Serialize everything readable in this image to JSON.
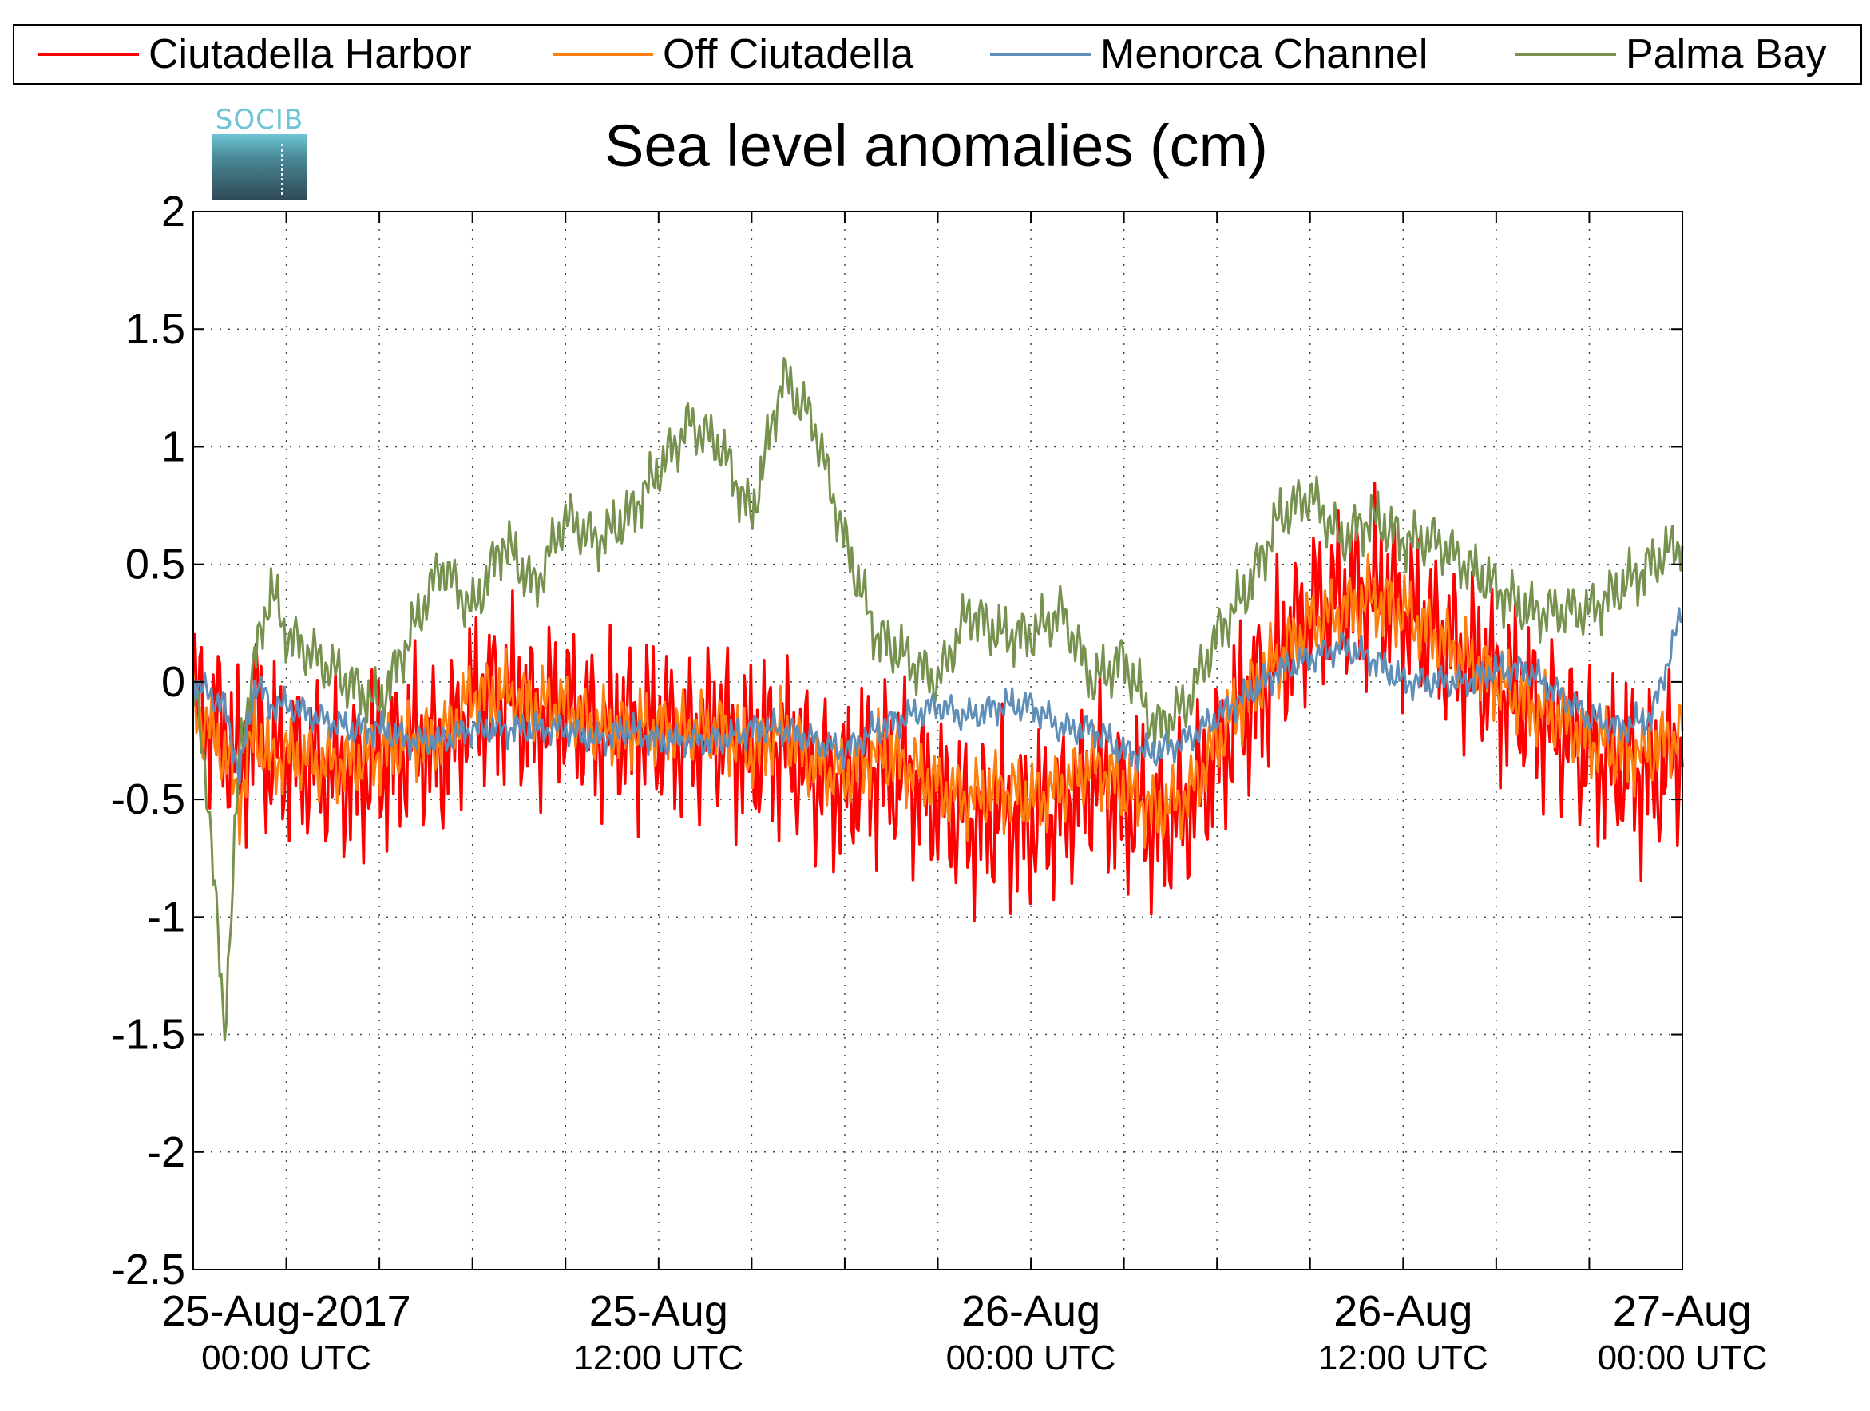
{
  "chart_data": {
    "type": "line",
    "title": "Sea level anomalies (cm)",
    "xlabel": "",
    "ylabel": "",
    "ylim": [
      -2.5,
      2
    ],
    "yticks": [
      2,
      1.5,
      1,
      0.5,
      0,
      -0.5,
      -1,
      -1.5,
      -2,
      -2.5
    ],
    "ytick_labels": [
      "2",
      "1.5",
      "1",
      "0.5",
      "0",
      "-0.5",
      "-1",
      "-1.5",
      "-2",
      "-2.5"
    ],
    "xlim_hours": [
      -5,
      43
    ],
    "xticks_hours": [
      -2,
      1,
      4,
      7,
      10,
      13,
      16,
      19,
      22,
      25,
      28,
      31,
      34,
      37,
      40
    ],
    "xtick_labels": [
      {
        "hour": -2,
        "date": "25-Aug-2017",
        "time": "00:00 UTC"
      },
      {
        "hour": 10,
        "date": "25-Aug",
        "time": "12:00 UTC"
      },
      {
        "hour": 22,
        "date": "26-Aug",
        "time": "00:00 UTC"
      },
      {
        "hour": 34,
        "date": "26-Aug",
        "time": "12:00 UTC"
      },
      {
        "hour": 43,
        "date": "27-Aug",
        "time": "00:00 UTC"
      }
    ],
    "grid": true,
    "legend_position": "top",
    "series": [
      {
        "name": "Ciutadella Harbor",
        "color": "#ff0000",
        "noise": 0.38,
        "x": [
          -5,
          -4,
          -3.5,
          -3,
          -2.5,
          -2,
          -1,
          0,
          1,
          2,
          3,
          4,
          5,
          6,
          7,
          8,
          9,
          10,
          11,
          12,
          13,
          14,
          15,
          16,
          17,
          18,
          19,
          20,
          21,
          22,
          23,
          24,
          25,
          26,
          27,
          28,
          29,
          30,
          31,
          32,
          33,
          34,
          35,
          36,
          37,
          38,
          39,
          40,
          41,
          42,
          43
        ],
        "y": [
          -0.1,
          -0.2,
          -0.4,
          -0.1,
          -0.35,
          -0.3,
          -0.35,
          -0.4,
          -0.35,
          -0.25,
          -0.3,
          -0.1,
          -0.05,
          -0.15,
          -0.1,
          -0.2,
          -0.2,
          -0.2,
          -0.25,
          -0.2,
          -0.3,
          -0.25,
          -0.4,
          -0.45,
          -0.35,
          -0.4,
          -0.5,
          -0.6,
          -0.55,
          -0.6,
          -0.55,
          -0.4,
          -0.5,
          -0.6,
          -0.55,
          -0.3,
          -0.1,
          0.1,
          0.3,
          0.35,
          0.4,
          0.3,
          0.2,
          0.1,
          0.0,
          -0.1,
          -0.2,
          -0.3,
          -0.35,
          -0.4,
          -0.3
        ]
      },
      {
        "name": "Off Ciutadella",
        "color": "#ff7f0e",
        "noise": 0.16,
        "x": [
          -5,
          -4,
          -3.5,
          -3,
          -2.5,
          -2,
          -1,
          0,
          1,
          2,
          3,
          4,
          5,
          6,
          7,
          8,
          9,
          10,
          11,
          12,
          13,
          14,
          15,
          16,
          17,
          18,
          19,
          20,
          21,
          22,
          23,
          24,
          25,
          26,
          27,
          28,
          29,
          30,
          31,
          32,
          33,
          34,
          35,
          36,
          37,
          38,
          39,
          40,
          41,
          42,
          43
        ],
        "y": [
          -0.1,
          -0.3,
          -0.5,
          -0.2,
          -0.35,
          -0.3,
          -0.35,
          -0.35,
          -0.3,
          -0.25,
          -0.25,
          -0.05,
          -0.05,
          -0.1,
          -0.1,
          -0.2,
          -0.2,
          -0.2,
          -0.2,
          -0.2,
          -0.3,
          -0.2,
          -0.35,
          -0.4,
          -0.3,
          -0.35,
          -0.45,
          -0.5,
          -0.45,
          -0.5,
          -0.45,
          -0.35,
          -0.45,
          -0.55,
          -0.5,
          -0.25,
          -0.05,
          0.1,
          0.25,
          0.3,
          0.35,
          0.3,
          0.2,
          0.1,
          0.0,
          -0.1,
          -0.15,
          -0.25,
          -0.3,
          -0.3,
          -0.2
        ]
      },
      {
        "name": "Menorca Channel",
        "color": "#5f8fb8",
        "noise": 0.07,
        "x": [
          -5,
          -4,
          -3.5,
          -3,
          -2.5,
          -2,
          -1,
          0,
          1,
          2,
          3,
          4,
          5,
          6,
          7,
          8,
          9,
          10,
          11,
          12,
          13,
          14,
          15,
          16,
          17,
          18,
          19,
          20,
          21,
          22,
          23,
          24,
          25,
          26,
          27,
          28,
          29,
          30,
          31,
          32,
          33,
          34,
          35,
          36,
          37,
          38,
          39,
          40,
          41,
          42,
          43
        ],
        "y": [
          0.0,
          -0.1,
          -0.4,
          0.0,
          -0.1,
          -0.1,
          -0.15,
          -0.2,
          -0.2,
          -0.25,
          -0.25,
          -0.2,
          -0.2,
          -0.2,
          -0.2,
          -0.25,
          -0.2,
          -0.25,
          -0.25,
          -0.25,
          -0.2,
          -0.2,
          -0.25,
          -0.3,
          -0.2,
          -0.15,
          -0.1,
          -0.15,
          -0.1,
          -0.1,
          -0.2,
          -0.2,
          -0.3,
          -0.3,
          -0.25,
          -0.15,
          -0.05,
          0.05,
          0.1,
          0.15,
          0.1,
          0.0,
          0.0,
          0.0,
          0.05,
          0.05,
          -0.05,
          -0.15,
          -0.2,
          -0.15,
          0.3
        ]
      },
      {
        "name": "Palma Bay",
        "color": "#77924f",
        "noise": 0.12,
        "x": [
          -5,
          -4.5,
          -4,
          -3.5,
          -3,
          -2.5,
          -2,
          -1,
          0,
          1,
          2,
          3,
          4,
          5,
          6,
          7,
          8,
          9,
          10,
          11,
          12,
          13,
          14,
          15,
          16,
          17,
          18,
          19,
          20,
          21,
          22,
          23,
          24,
          25,
          26,
          27,
          28,
          29,
          30,
          31,
          32,
          33,
          34,
          35,
          36,
          37,
          38,
          39,
          40,
          41,
          42,
          43
        ],
        "y": [
          0.0,
          -0.5,
          -1.5,
          -0.3,
          0.1,
          0.4,
          0.2,
          0.1,
          0.0,
          -0.1,
          0.2,
          0.5,
          0.3,
          0.6,
          0.4,
          0.7,
          0.6,
          0.7,
          0.9,
          1.1,
          1.0,
          0.7,
          1.3,
          1.1,
          0.6,
          0.2,
          0.1,
          0.0,
          0.3,
          0.2,
          0.2,
          0.3,
          0.0,
          0.1,
          -0.2,
          -0.1,
          0.2,
          0.4,
          0.7,
          0.8,
          0.6,
          0.7,
          0.6,
          0.6,
          0.5,
          0.4,
          0.3,
          0.3,
          0.3,
          0.4,
          0.5,
          0.6
        ]
      }
    ]
  },
  "logo": {
    "text": "SOCIB"
  }
}
